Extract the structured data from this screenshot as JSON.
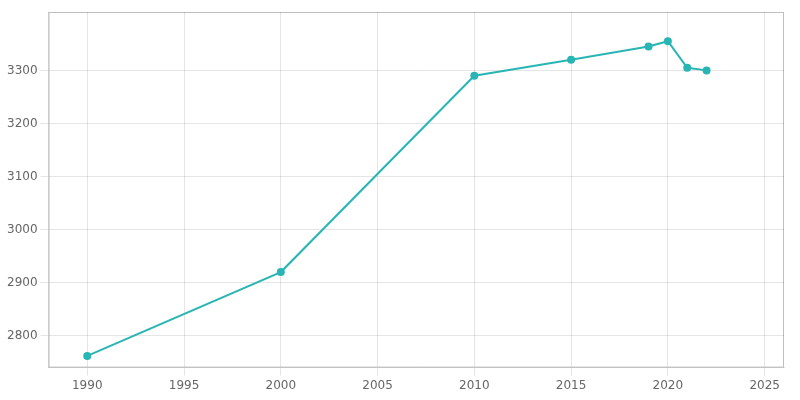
{
  "chart_data": {
    "type": "line",
    "x": [
      1990,
      2000,
      2010,
      2015,
      2019,
      2020,
      2021,
      2022
    ],
    "values": [
      2762,
      2920,
      3290,
      3320,
      3345,
      3355,
      3305,
      3300
    ],
    "color": "#2ab5b5",
    "marker": "circle",
    "xlim": [
      1988,
      2026
    ],
    "ylim": [
      2740,
      3410
    ],
    "xticks": [
      1990,
      1995,
      2000,
      2005,
      2010,
      2015,
      2020,
      2025
    ],
    "yticks": [
      2800,
      2900,
      3000,
      3100,
      3200,
      3300
    ],
    "grid": true
  }
}
